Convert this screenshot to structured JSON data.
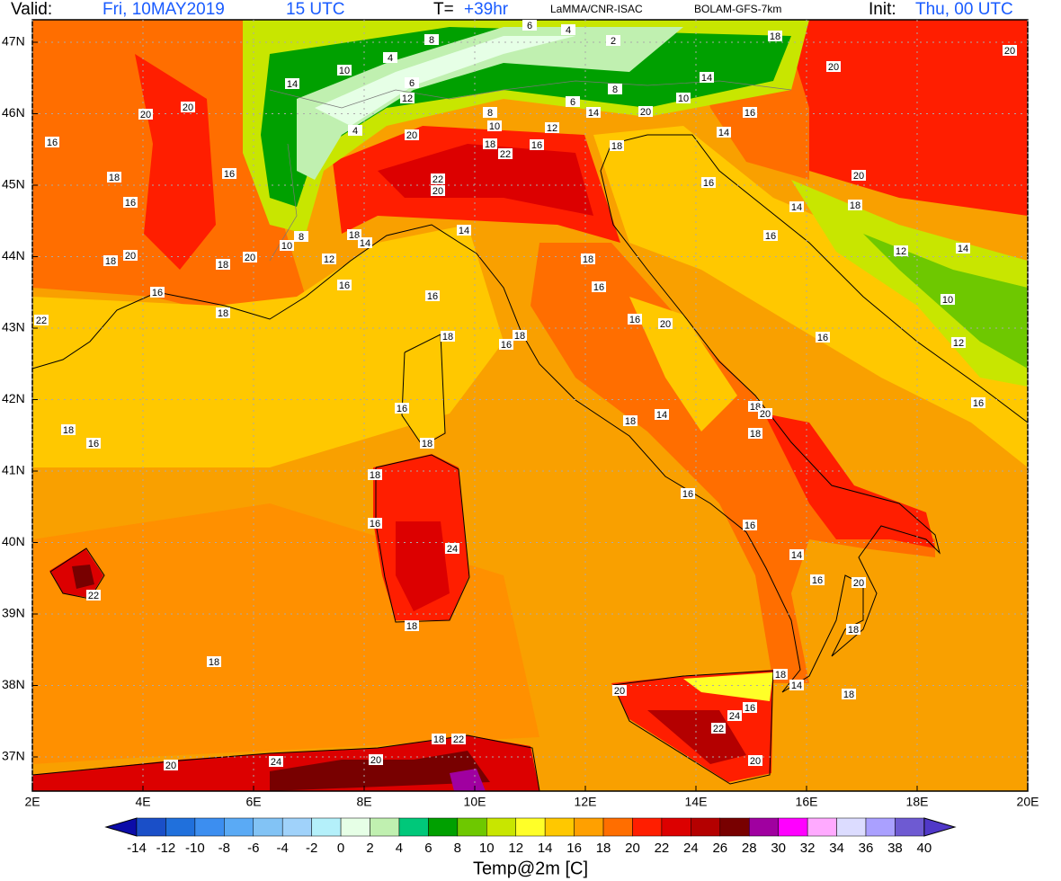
{
  "header": {
    "valid_label": "Valid:",
    "valid_date": "Fri, 10MAY2019",
    "valid_time": "15 UTC",
    "lead_label": "T=",
    "lead_value": "+39hr",
    "institute": "LaMMA/CNR-ISAC",
    "model": "BOLAM-GFS-7km",
    "init_label": "Init:",
    "init_value": "Thu, 00 UTC"
  },
  "map": {
    "lat_labels": [
      "47N",
      "46N",
      "45N",
      "44N",
      "43N",
      "42N",
      "41N",
      "40N",
      "39N",
      "38N",
      "37N"
    ],
    "lon_labels": [
      "2E",
      "4E",
      "6E",
      "8E",
      "10E",
      "12E",
      "14E",
      "16E",
      "18E",
      "20E"
    ],
    "contour_labels": [
      20,
      20,
      16,
      16,
      18,
      16,
      18,
      20,
      18,
      20,
      16,
      18,
      22,
      16,
      16,
      18,
      16,
      16,
      18,
      16,
      18,
      18,
      18,
      16,
      24,
      18,
      18,
      22,
      20,
      24,
      20,
      18,
      22,
      20,
      24,
      22,
      16,
      20,
      18,
      14,
      18,
      18,
      20,
      16,
      14,
      16,
      16,
      18,
      14,
      18,
      20,
      18,
      16,
      16,
      12,
      10,
      12,
      14,
      18,
      20,
      14,
      16,
      16,
      18,
      16,
      16,
      20,
      14,
      18,
      14,
      12,
      10,
      8,
      22,
      20,
      20,
      18,
      22,
      16,
      12,
      14,
      20,
      16,
      14,
      18,
      10,
      14,
      18,
      20,
      20,
      10,
      4,
      8,
      6,
      4,
      2,
      6,
      12,
      10,
      8,
      6,
      8,
      4,
      14
    ]
  },
  "colorbar": {
    "labels": [
      -14,
      -12,
      -10,
      -8,
      -6,
      -4,
      -2,
      0,
      2,
      4,
      6,
      8,
      10,
      12,
      14,
      16,
      18,
      20,
      22,
      24,
      26,
      28,
      30,
      32,
      34,
      36,
      38,
      40
    ],
    "colors": [
      "#0c0ca8",
      "#1a4fc8",
      "#2070dc",
      "#3c8ef0",
      "#5aaaf5",
      "#82c3f5",
      "#a0d2fa",
      "#b4f0fa",
      "#e6ffe6",
      "#c0f0b0",
      "#00c87a",
      "#00a000",
      "#6ec800",
      "#c8e600",
      "#ffff28",
      "#ffc800",
      "#ffa000",
      "#ff6e00",
      "#ff1e00",
      "#dc0000",
      "#b40000",
      "#780000",
      "#a000a0",
      "#ff00ff",
      "#ffaaff",
      "#dcdcff",
      "#aaa0ff",
      "#6e5ad2",
      "#5038c8"
    ],
    "title": "Temp@2m [C]"
  }
}
